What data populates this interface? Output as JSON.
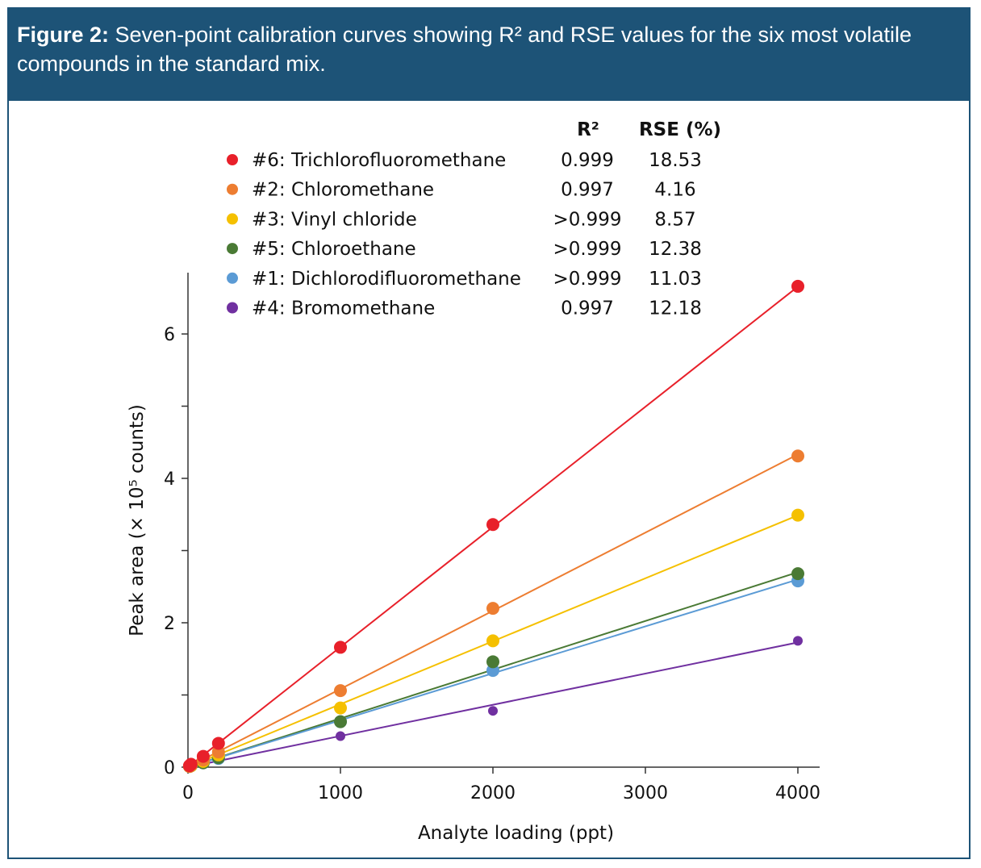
{
  "caption": {
    "label": "Figure 2:",
    "text": "Seven-point calibration curves showing R² and RSE values for the six most volatile compounds in the standard mix."
  },
  "chart_data": {
    "type": "scatter",
    "xlabel": "Analyte loading (ppt)",
    "ylabel": "Peak area (× 10⁵ counts)",
    "xlim": [
      0,
      4150
    ],
    "ylim": [
      0,
      6.8
    ],
    "xticks": [
      0,
      1000,
      2000,
      3000,
      4000
    ],
    "yticks": [
      0,
      2,
      4,
      6
    ],
    "table_headers": {
      "r2": "R²",
      "rse": "RSE (%)"
    },
    "x": [
      10,
      20,
      100,
      200,
      1000,
      2000,
      4000
    ],
    "series": [
      {
        "name": "#6: Trichlorofluoromethane",
        "r2": "0.999",
        "rse": "18.53",
        "color": "#e8202a",
        "values": [
          0.02,
          0.04,
          0.15,
          0.33,
          1.66,
          3.36,
          6.66
        ],
        "slope": 0.001664
      },
      {
        "name": "#2: Chloromethane",
        "r2": "0.997",
        "rse": "4.16",
        "color": "#ed7d31",
        "values": [
          0.01,
          0.03,
          0.1,
          0.21,
          1.06,
          2.2,
          4.31
        ],
        "slope": 0.001083
      },
      {
        "name": "#3: Vinyl chloride",
        "r2": ">0.999",
        "rse": "8.57",
        "color": "#f5c000",
        "values": [
          0.01,
          0.02,
          0.08,
          0.17,
          0.82,
          1.75,
          3.49
        ],
        "slope": 0.000872
      },
      {
        "name": "#5: Chloroethane",
        "r2": ">0.999",
        "rse": "12.38",
        "color": "#4a7a35",
        "values": [
          0.01,
          0.02,
          0.06,
          0.13,
          0.63,
          1.46,
          2.68
        ],
        "slope": 0.000675
      },
      {
        "name": "#1: Dichlorodifluoromethane",
        "r2": ">0.999",
        "rse": "11.03",
        "color": "#5b9bd5",
        "values": [
          0.01,
          0.02,
          0.06,
          0.12,
          0.63,
          1.34,
          2.58
        ],
        "slope": 0.00065
      },
      {
        "name": "#4: Bromomethane",
        "r2": "0.997",
        "rse": "12.18",
        "color": "#7030a0",
        "values": [
          0.005,
          0.01,
          0.05,
          0.1,
          0.43,
          0.78,
          1.75
        ],
        "slope": 0.000432
      }
    ]
  }
}
